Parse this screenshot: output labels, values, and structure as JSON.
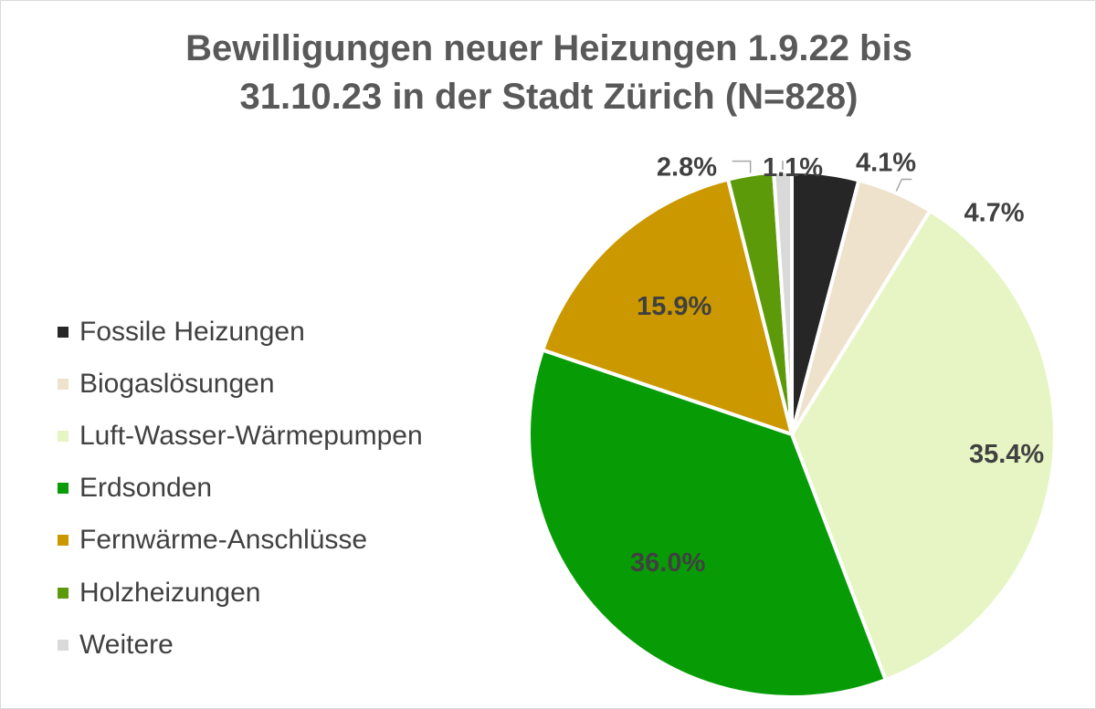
{
  "chart_data": {
    "type": "pie",
    "title_lines": [
      "Bewilligungen neuer Heizungen 1.9.22 bis",
      "31.10.23 in der Stadt Zürich (N=828)"
    ],
    "slices": [
      {
        "name": "Fossile Heizungen",
        "value": 4.1,
        "label": "4.1%",
        "color": "#262626"
      },
      {
        "name": "Biogaslösungen",
        "value": 4.7,
        "label": "4.7%",
        "color": "#efe2cc"
      },
      {
        "name": "Luft-Wasser-Wärmepumpen",
        "value": 35.4,
        "label": "35.4%",
        "color": "#e6f5c3"
      },
      {
        "name": "Erdsonden",
        "value": 36.0,
        "label": "36.0%",
        "color": "#079c05"
      },
      {
        "name": "Fernwärme-Anschlüsse",
        "value": 15.9,
        "label": "15.9%",
        "color": "#cc9800"
      },
      {
        "name": "Holzheizungen",
        "value": 2.8,
        "label": "2.8%",
        "color": "#5c9a0a"
      },
      {
        "name": "Weitere",
        "value": 1.1,
        "label": "1.1%",
        "color": "#d9d9d9"
      }
    ],
    "legend_position": "left",
    "start_angle": "12 o'clock",
    "direction": "clockwise"
  }
}
